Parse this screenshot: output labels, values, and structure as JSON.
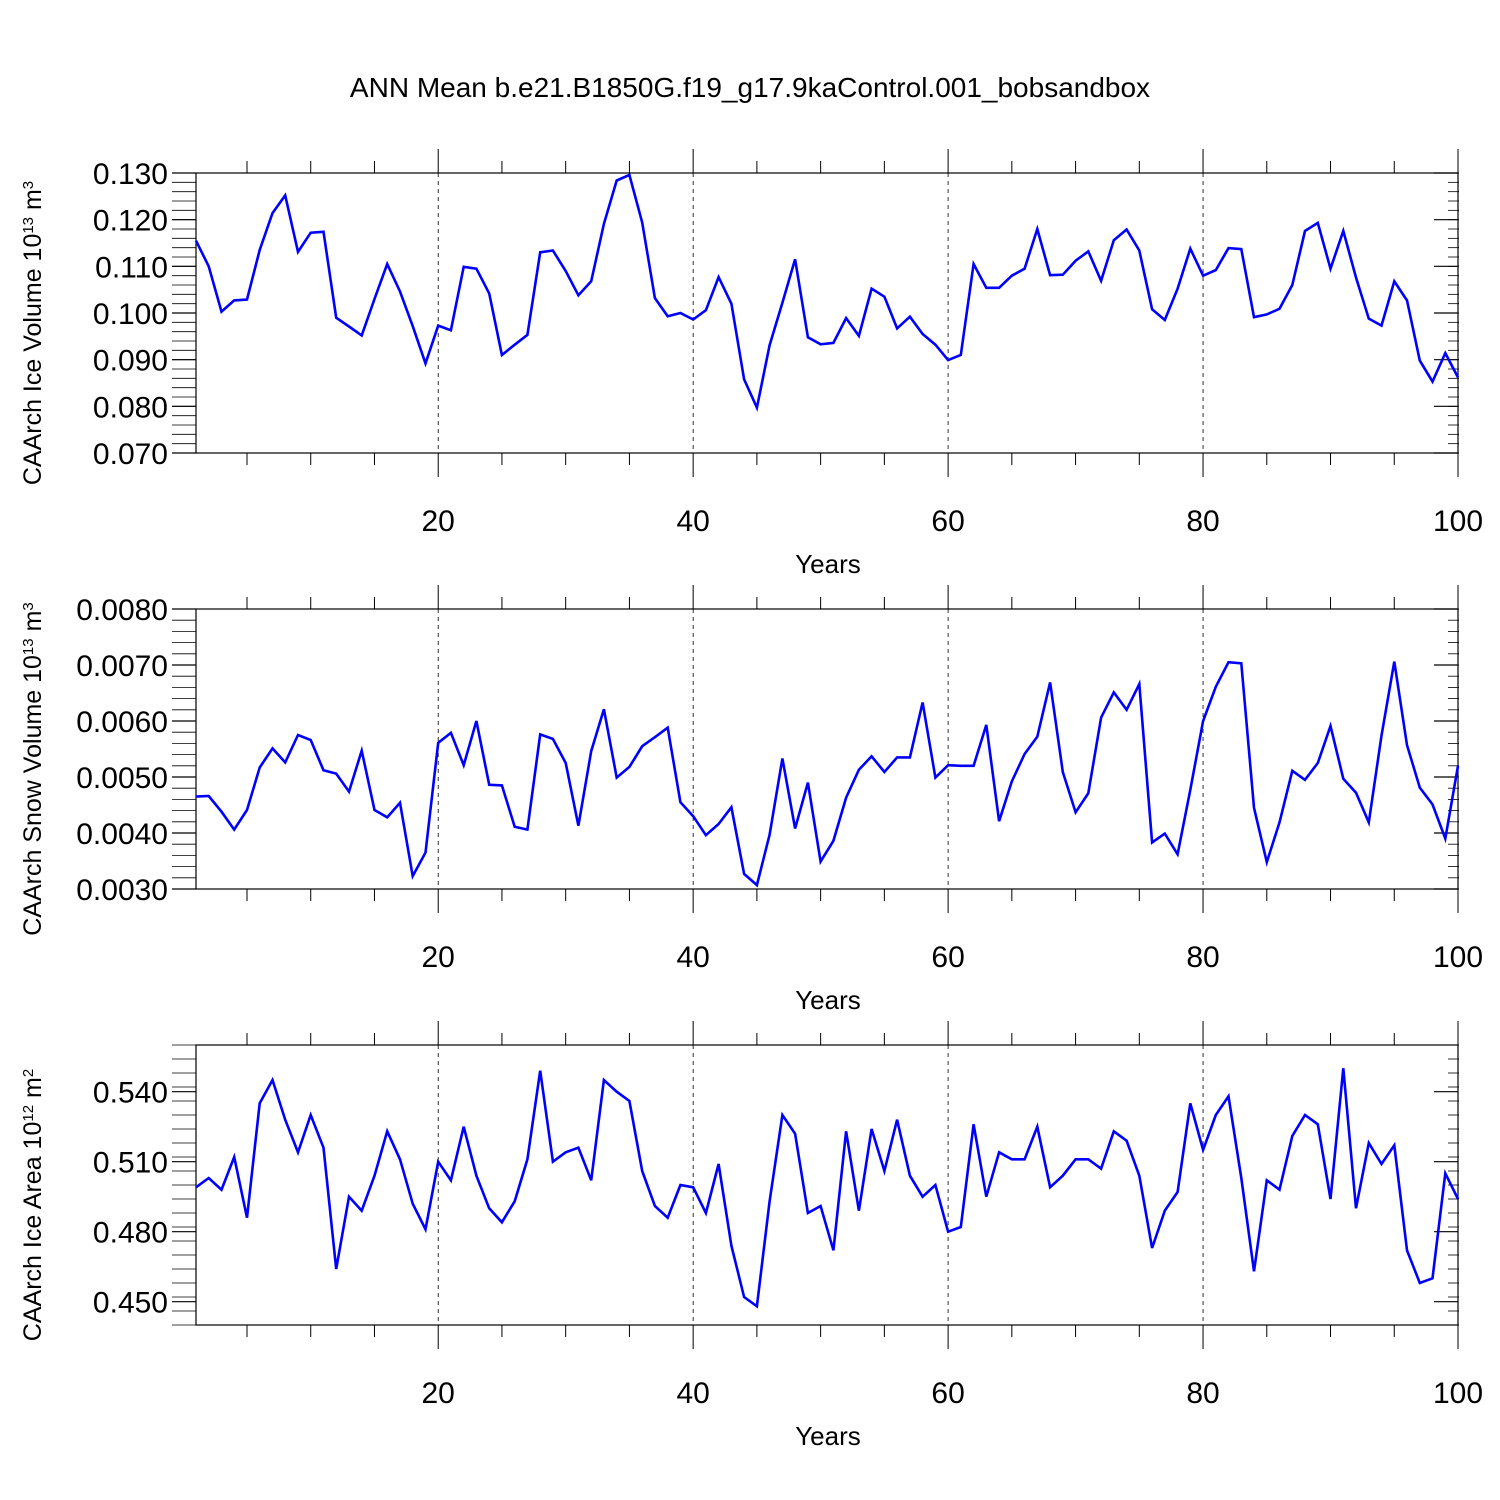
{
  "title": "ANN Mean b.e21.B1850G.f19_g17.9kaControl.001_bobsandbox",
  "chart_data": [
    {
      "type": "line",
      "title": "",
      "xlabel": "Years",
      "ylabel": {
        "base": "CAArch Ice Volume 10",
        "exp1": "13",
        "mid": " m",
        "exp2": "3"
      },
      "xlim": [
        1,
        100
      ],
      "ylim": [
        0.07,
        0.13
      ],
      "xticks": [
        20,
        40,
        60,
        80,
        100
      ],
      "yticks": [
        0.07,
        0.08,
        0.09,
        0.1,
        0.11,
        0.12,
        0.13
      ],
      "ytick_labels": [
        "0.070",
        "0.080",
        "0.090",
        "0.100",
        "0.110",
        "0.120",
        "0.130"
      ],
      "grid_x": [
        20,
        40,
        60,
        80
      ],
      "color": "#0000ff",
      "x": [
        1,
        2,
        3,
        4,
        5,
        6,
        7,
        8,
        9,
        10,
        11,
        12,
        13,
        14,
        15,
        16,
        17,
        18,
        19,
        20,
        21,
        22,
        23,
        24,
        25,
        26,
        27,
        28,
        29,
        30,
        31,
        32,
        33,
        34,
        35,
        36,
        37,
        38,
        39,
        40,
        41,
        42,
        43,
        44,
        45,
        46,
        47,
        48,
        49,
        50,
        51,
        52,
        53,
        54,
        55,
        56,
        57,
        58,
        59,
        60,
        61,
        62,
        63,
        64,
        65,
        66,
        67,
        68,
        69,
        70,
        71,
        72,
        73,
        74,
        75,
        76,
        77,
        78,
        79,
        80,
        81,
        82,
        83,
        84,
        85,
        86,
        87,
        88,
        89,
        90,
        91,
        92,
        93,
        94,
        95,
        96,
        97,
        98,
        99,
        100
      ],
      "values": [
        0.1155,
        0.11,
        0.1003,
        0.1027,
        0.1029,
        0.1135,
        0.1214,
        0.1252,
        0.1131,
        0.1172,
        0.1174,
        0.099,
        0.0971,
        0.0952,
        0.103,
        0.1105,
        0.1046,
        0.0972,
        0.0892,
        0.0973,
        0.0963,
        0.1099,
        0.1095,
        0.1042,
        0.091,
        0.0932,
        0.0953,
        0.113,
        0.1134,
        0.109,
        0.1038,
        0.1068,
        0.1191,
        0.1284,
        0.1296,
        0.1194,
        0.1032,
        0.0993,
        0.1,
        0.0986,
        0.1006,
        0.1077,
        0.102,
        0.0858,
        0.0797,
        0.0931,
        0.1022,
        0.1115,
        0.0948,
        0.0933,
        0.0936,
        0.0989,
        0.0951,
        0.1052,
        0.1035,
        0.0967,
        0.0992,
        0.0955,
        0.0932,
        0.0899,
        0.091,
        0.1105,
        0.1054,
        0.1054,
        0.108,
        0.1095,
        0.118,
        0.1081,
        0.1082,
        0.1112,
        0.1132,
        0.1069,
        0.1156,
        0.1179,
        0.1134,
        0.1008,
        0.0985,
        0.1052,
        0.1138,
        0.108,
        0.1092,
        0.1139,
        0.1137,
        0.0991,
        0.0997,
        0.1009,
        0.106,
        0.1176,
        0.1193,
        0.1095,
        0.1176,
        0.1076,
        0.0988,
        0.0973,
        0.1068,
        0.1027,
        0.0898,
        0.0853,
        0.0914,
        0.0862
      ]
    },
    {
      "type": "line",
      "title": "",
      "xlabel": "Years",
      "ylabel": {
        "base": "CAArch Snow Volume 10",
        "exp1": "13",
        "mid": " m",
        "exp2": "3"
      },
      "xlim": [
        1,
        100
      ],
      "ylim": [
        0.003,
        0.008
      ],
      "xticks": [
        20,
        40,
        60,
        80,
        100
      ],
      "yticks": [
        0.003,
        0.004,
        0.005,
        0.006,
        0.007,
        0.008
      ],
      "ytick_labels": [
        "0.0030",
        "0.0040",
        "0.0050",
        "0.0060",
        "0.0070",
        "0.0080"
      ],
      "grid_x": [
        20,
        40,
        60,
        80
      ],
      "color": "#0000ff",
      "x": [
        1,
        2,
        3,
        4,
        5,
        6,
        7,
        8,
        9,
        10,
        11,
        12,
        13,
        14,
        15,
        16,
        17,
        18,
        19,
        20,
        21,
        22,
        23,
        24,
        25,
        26,
        27,
        28,
        29,
        30,
        31,
        32,
        33,
        34,
        35,
        36,
        37,
        38,
        39,
        40,
        41,
        42,
        43,
        44,
        45,
        46,
        47,
        48,
        49,
        50,
        51,
        52,
        53,
        54,
        55,
        56,
        57,
        58,
        59,
        60,
        61,
        62,
        63,
        64,
        65,
        66,
        67,
        68,
        69,
        70,
        71,
        72,
        73,
        74,
        75,
        76,
        77,
        78,
        79,
        80,
        81,
        82,
        83,
        84,
        85,
        86,
        87,
        88,
        89,
        90,
        91,
        92,
        93,
        94,
        95,
        96,
        97,
        98,
        99,
        100
      ],
      "values": [
        0.00465,
        0.00466,
        0.00438,
        0.00406,
        0.00441,
        0.00517,
        0.00551,
        0.00526,
        0.00575,
        0.00566,
        0.00512,
        0.00506,
        0.00474,
        0.00547,
        0.00441,
        0.00428,
        0.00454,
        0.00323,
        0.00365,
        0.00561,
        0.00579,
        0.00521,
        0.006,
        0.00486,
        0.00485,
        0.00411,
        0.00406,
        0.00576,
        0.00568,
        0.00525,
        0.00413,
        0.00546,
        0.00621,
        0.00499,
        0.00518,
        0.00555,
        0.00571,
        0.00588,
        0.00455,
        0.0043,
        0.00396,
        0.00416,
        0.00446,
        0.00327,
        0.00307,
        0.00397,
        0.00533,
        0.00408,
        0.0049,
        0.00349,
        0.00386,
        0.00463,
        0.00513,
        0.00537,
        0.00509,
        0.00535,
        0.00535,
        0.00633,
        0.00499,
        0.00521,
        0.0052,
        0.0052,
        0.00593,
        0.00421,
        0.00492,
        0.00541,
        0.00572,
        0.00669,
        0.00509,
        0.00437,
        0.00471,
        0.00606,
        0.00651,
        0.0062,
        0.00666,
        0.00383,
        0.00399,
        0.00362,
        0.00477,
        0.006,
        0.00661,
        0.00705,
        0.00703,
        0.00445,
        0.00348,
        0.00419,
        0.00511,
        0.00495,
        0.00525,
        0.00591,
        0.00497,
        0.00472,
        0.00419,
        0.00574,
        0.00706,
        0.00557,
        0.00481,
        0.00451,
        0.0039,
        0.0052
      ]
    },
    {
      "type": "line",
      "title": "",
      "xlabel": "Years",
      "ylabel": {
        "base": "CAArch Ice Area 10",
        "exp1": "12",
        "mid": " m",
        "exp2": "2"
      },
      "xlim": [
        1,
        100
      ],
      "ylim": [
        0.44,
        0.56
      ],
      "xticks": [
        20,
        40,
        60,
        80,
        100
      ],
      "yticks": [
        0.45,
        0.48,
        0.51,
        0.54
      ],
      "ytick_labels": [
        "0.450",
        "0.480",
        "0.510",
        "0.540"
      ],
      "grid_x": [
        20,
        40,
        60,
        80
      ],
      "color": "#0000ff",
      "x": [
        1,
        2,
        3,
        4,
        5,
        6,
        7,
        8,
        9,
        10,
        11,
        12,
        13,
        14,
        15,
        16,
        17,
        18,
        19,
        20,
        21,
        22,
        23,
        24,
        25,
        26,
        27,
        28,
        29,
        30,
        31,
        32,
        33,
        34,
        35,
        36,
        37,
        38,
        39,
        40,
        41,
        42,
        43,
        44,
        45,
        46,
        47,
        48,
        49,
        50,
        51,
        52,
        53,
        54,
        55,
        56,
        57,
        58,
        59,
        60,
        61,
        62,
        63,
        64,
        65,
        66,
        67,
        68,
        69,
        70,
        71,
        72,
        73,
        74,
        75,
        76,
        77,
        78,
        79,
        80,
        81,
        82,
        83,
        84,
        85,
        86,
        87,
        88,
        89,
        90,
        91,
        92,
        93,
        94,
        95,
        96,
        97,
        98,
        99,
        100
      ],
      "values": [
        0.499,
        0.503,
        0.498,
        0.512,
        0.486,
        0.535,
        0.545,
        0.528,
        0.514,
        0.53,
        0.516,
        0.464,
        0.495,
        0.489,
        0.504,
        0.523,
        0.511,
        0.492,
        0.481,
        0.51,
        0.502,
        0.525,
        0.504,
        0.49,
        0.484,
        0.493,
        0.511,
        0.549,
        0.51,
        0.514,
        0.516,
        0.502,
        0.545,
        0.54,
        0.536,
        0.506,
        0.491,
        0.486,
        0.5,
        0.499,
        0.488,
        0.509,
        0.474,
        0.452,
        0.448,
        0.493,
        0.53,
        0.522,
        0.488,
        0.491,
        0.472,
        0.523,
        0.489,
        0.524,
        0.506,
        0.528,
        0.504,
        0.495,
        0.5,
        0.48,
        0.482,
        0.526,
        0.495,
        0.514,
        0.511,
        0.511,
        0.525,
        0.499,
        0.504,
        0.511,
        0.511,
        0.507,
        0.523,
        0.519,
        0.504,
        0.473,
        0.489,
        0.497,
        0.535,
        0.515,
        0.53,
        0.538,
        0.503,
        0.463,
        0.502,
        0.498,
        0.521,
        0.53,
        0.526,
        0.494,
        0.55,
        0.49,
        0.518,
        0.509,
        0.517,
        0.472,
        0.458,
        0.46,
        0.505,
        0.494
      ]
    }
  ]
}
